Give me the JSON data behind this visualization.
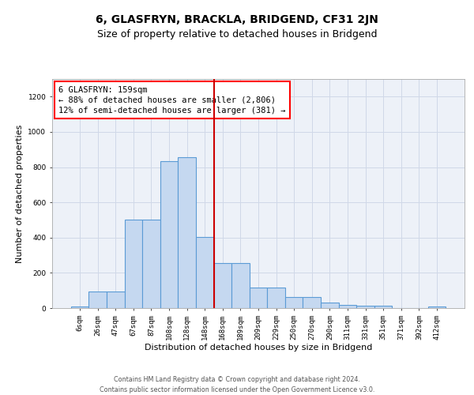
{
  "title": "6, GLASFRYN, BRACKLA, BRIDGEND, CF31 2JN",
  "subtitle": "Size of property relative to detached houses in Bridgend",
  "xlabel": "Distribution of detached houses by size in Bridgend",
  "ylabel": "Number of detached properties",
  "footnote1": "Contains HM Land Registry data © Crown copyright and database right 2024.",
  "footnote2": "Contains public sector information licensed under the Open Government Licence v3.0.",
  "annotation_title": "6 GLASFRYN: 159sqm",
  "annotation_line1": "← 88% of detached houses are smaller (2,806)",
  "annotation_line2": "12% of semi-detached houses are larger (381) →",
  "bar_color": "#c5d8f0",
  "bar_edge_color": "#5b9bd5",
  "vline_color": "#cc0000",
  "vline_bar_index": 7.5,
  "categories": [
    "6sqm",
    "26sqm",
    "47sqm",
    "67sqm",
    "87sqm",
    "108sqm",
    "128sqm",
    "148sqm",
    "168sqm",
    "189sqm",
    "209sqm",
    "229sqm",
    "250sqm",
    "270sqm",
    "290sqm",
    "311sqm",
    "331sqm",
    "351sqm",
    "371sqm",
    "392sqm",
    "412sqm"
  ],
  "values": [
    10,
    95,
    95,
    500,
    500,
    835,
    855,
    405,
    255,
    255,
    115,
    115,
    65,
    65,
    30,
    20,
    15,
    15,
    0,
    0,
    10
  ],
  "ylim": [
    0,
    1300
  ],
  "yticks": [
    0,
    200,
    400,
    600,
    800,
    1000,
    1200
  ],
  "grid_color": "#d0d8e8",
  "bg_color": "#edf1f8",
  "title_fontsize": 10,
  "subtitle_fontsize": 9,
  "axis_label_fontsize": 8,
  "tick_fontsize": 6.5,
  "footnote_fontsize": 5.8,
  "ann_fontsize": 7.5
}
